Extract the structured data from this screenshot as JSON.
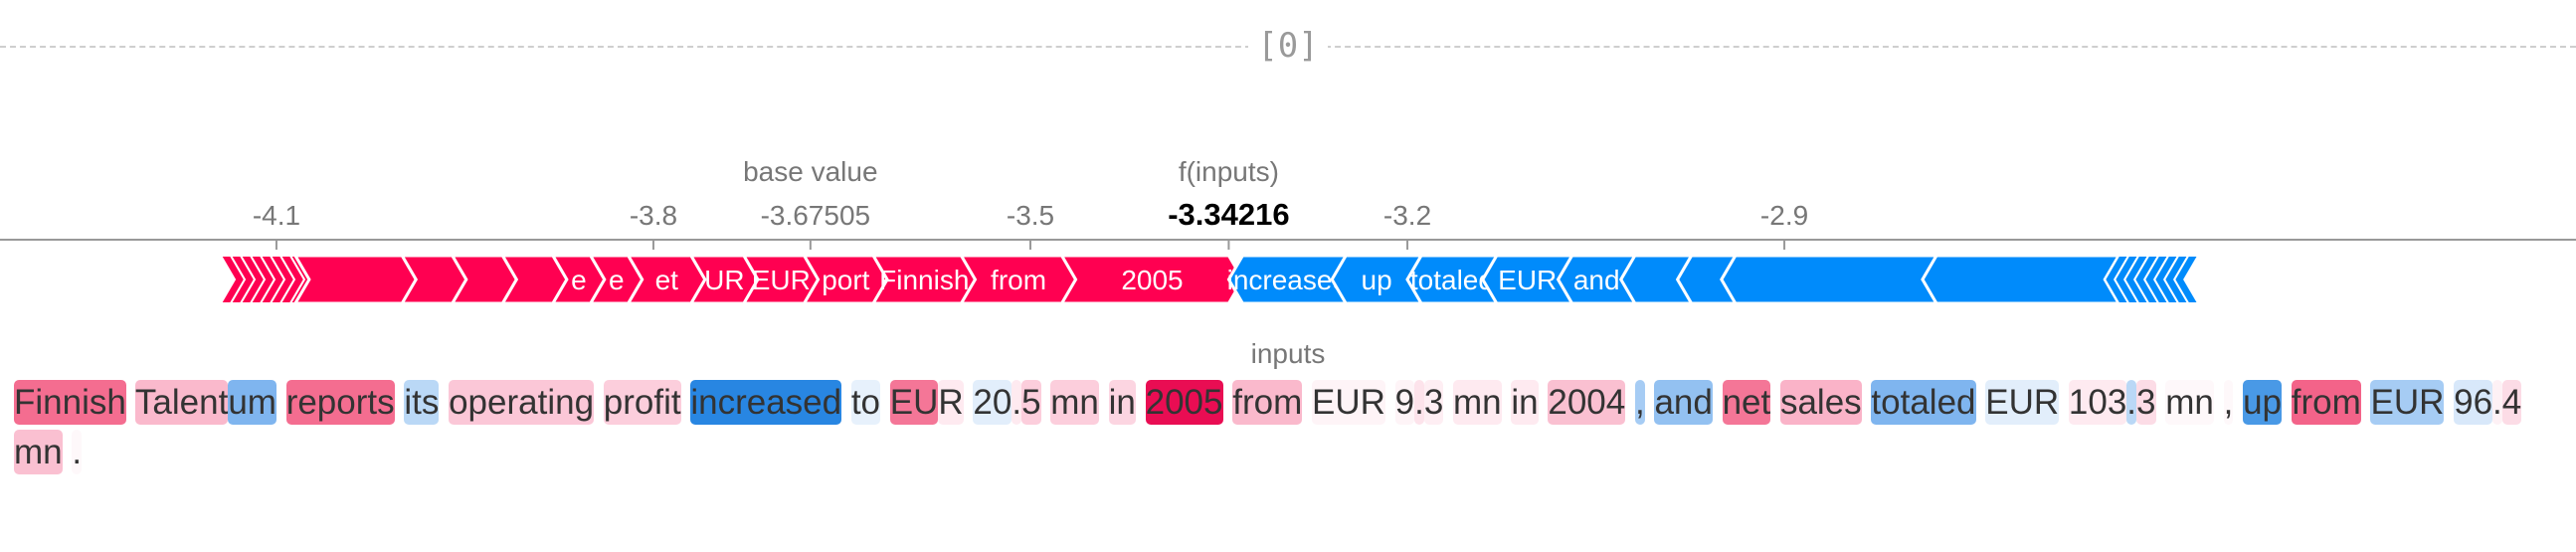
{
  "header": {
    "title": "[0]"
  },
  "chart_data": {
    "type": "force",
    "axis": {
      "xlim": [
        -4.32,
        -2.27
      ],
      "ticks": [
        -4.1,
        -3.8,
        -3.5,
        -3.2,
        -2.9
      ],
      "tick_labels": [
        "-4.1",
        "-3.8",
        "-3.5",
        "-3.2",
        "-2.9"
      ]
    },
    "base_value": {
      "label": "base value",
      "value": -3.67505,
      "value_label": "-3.67505"
    },
    "output_value": {
      "label": "f(inputs)",
      "value": -3.34216,
      "value_label": "-3.34216"
    },
    "positive_segments": [
      {
        "from": -4.085,
        "to": -4.0,
        "text": ""
      },
      {
        "from": -4.0,
        "to": -3.96,
        "text": ""
      },
      {
        "from": -3.96,
        "to": -3.92,
        "text": ""
      },
      {
        "from": -3.92,
        "to": -3.88,
        "text": ""
      },
      {
        "from": -3.88,
        "to": -3.85,
        "text": "e"
      },
      {
        "from": -3.85,
        "to": -3.82,
        "text": "e"
      },
      {
        "from": -3.82,
        "to": -3.77,
        "text": "et"
      },
      {
        "from": -3.77,
        "to": -3.728,
        "text": "UR"
      },
      {
        "from": -3.728,
        "to": -3.68,
        "text": "EUR"
      },
      {
        "from": -3.68,
        "to": -3.625,
        "text": "port"
      },
      {
        "from": -3.625,
        "to": -3.555,
        "text": "Finnish"
      },
      {
        "from": -3.555,
        "to": -3.475,
        "text": "from"
      },
      {
        "from": -3.475,
        "to": -3.34216,
        "text": "2005"
      }
    ],
    "negative_segments": [
      {
        "from": -3.34216,
        "to": -3.26,
        "text": "increased"
      },
      {
        "from": -3.26,
        "to": -3.2,
        "text": "up"
      },
      {
        "from": -3.2,
        "to": -3.14,
        "text": "totaled"
      },
      {
        "from": -3.14,
        "to": -3.08,
        "text": "EUR"
      },
      {
        "from": -3.08,
        "to": -3.03,
        "text": "and"
      },
      {
        "from": -3.03,
        "to": -2.985,
        "text": ""
      },
      {
        "from": -2.985,
        "to": -2.95,
        "text": ""
      },
      {
        "from": -2.95,
        "to": -2.79,
        "text": ""
      },
      {
        "from": -2.79,
        "to": -2.645,
        "text": ""
      }
    ],
    "colors": {
      "positive": "#ff0051",
      "negative": "#008bfb",
      "axis": "#999999"
    }
  },
  "inputs": {
    "label": "inputs",
    "tokens": [
      {
        "text": "Finnish",
        "sep": " ",
        "color": "#f03c6b",
        "alpha": 0.75
      },
      {
        "text": "Talent",
        "sep": "",
        "color": "#f5749a",
        "alpha": 0.5
      },
      {
        "text": "um",
        "sep": " ",
        "color": "#3a8ee6",
        "alpha": 0.65
      },
      {
        "text": "reports",
        "sep": " ",
        "color": "#f03c6b",
        "alpha": 0.75
      },
      {
        "text": "its",
        "sep": " ",
        "color": "#3a8ee6",
        "alpha": 0.35
      },
      {
        "text": "operating",
        "sep": " ",
        "color": "#f5749a",
        "alpha": 0.4
      },
      {
        "text": "profit",
        "sep": " ",
        "color": "#f5749a",
        "alpha": 0.35
      },
      {
        "text": "increased",
        "sep": " ",
        "color": "#1c7fe0",
        "alpha": 0.95
      },
      {
        "text": "to",
        "sep": " ",
        "color": "#3a8ee6",
        "alpha": 0.12
      },
      {
        "text": "EU",
        "sep": "",
        "color": "#f03c6b",
        "alpha": 0.7
      },
      {
        "text": "R",
        "sep": " ",
        "color": "#f5749a",
        "alpha": 0.15
      },
      {
        "text": "20",
        "sep": "",
        "color": "#3a8ee6",
        "alpha": 0.15
      },
      {
        "text": ".",
        "sep": "",
        "color": "#f5749a",
        "alpha": 0.15
      },
      {
        "text": "5",
        "sep": " ",
        "color": "#f5749a",
        "alpha": 0.35
      },
      {
        "text": "mn",
        "sep": " ",
        "color": "#f5749a",
        "alpha": 0.35
      },
      {
        "text": "in",
        "sep": " ",
        "color": "#f5749a",
        "alpha": 0.3
      },
      {
        "text": "2005",
        "sep": " ",
        "color": "#e8004a",
        "alpha": 0.95
      },
      {
        "text": "from",
        "sep": " ",
        "color": "#f5749a",
        "alpha": 0.5
      },
      {
        "text": "EUR",
        "sep": " ",
        "color": "#f5749a",
        "alpha": 0.08
      },
      {
        "text": "9",
        "sep": "",
        "color": "#f5749a",
        "alpha": 0.08
      },
      {
        "text": ".",
        "sep": "",
        "color": "#f5749a",
        "alpha": 0.2
      },
      {
        "text": "3",
        "sep": " ",
        "color": "#f5749a",
        "alpha": 0.12
      },
      {
        "text": "mn",
        "sep": " ",
        "color": "#f5749a",
        "alpha": 0.15
      },
      {
        "text": "in",
        "sep": " ",
        "color": "#f5749a",
        "alpha": 0.15
      },
      {
        "text": "2004",
        "sep": " ",
        "color": "#f5749a",
        "alpha": 0.45
      },
      {
        "text": ",",
        "sep": " ",
        "color": "#3a8ee6",
        "alpha": 0.45
      },
      {
        "text": "and",
        "sep": " ",
        "color": "#3a8ee6",
        "alpha": 0.55
      },
      {
        "text": "net",
        "sep": " ",
        "color": "#f03c6b",
        "alpha": 0.7
      },
      {
        "text": "sales",
        "sep": " ",
        "color": "#f5749a",
        "alpha": 0.55
      },
      {
        "text": "totaled",
        "sep": " ",
        "color": "#3a8ee6",
        "alpha": 0.65
      },
      {
        "text": "EUR",
        "sep": " ",
        "color": "#3a8ee6",
        "alpha": 0.15
      },
      {
        "text": "103",
        "sep": "",
        "color": "#f5749a",
        "alpha": 0.15
      },
      {
        "text": ".",
        "sep": "",
        "color": "#3a8ee6",
        "alpha": 0.35
      },
      {
        "text": "3",
        "sep": " ",
        "color": "#f5749a",
        "alpha": 0.25
      },
      {
        "text": "mn",
        "sep": " ",
        "color": "#f5749a",
        "alpha": 0.05
      },
      {
        "text": ",",
        "sep": " ",
        "color": "#f5749a",
        "alpha": 0.05
      },
      {
        "text": "up",
        "sep": " ",
        "color": "#1c7fe0",
        "alpha": 0.8
      },
      {
        "text": "from",
        "sep": " ",
        "color": "#f03c6b",
        "alpha": 0.8
      },
      {
        "text": "EUR",
        "sep": " ",
        "color": "#3a8ee6",
        "alpha": 0.45
      },
      {
        "text": "96",
        "sep": "",
        "color": "#3a8ee6",
        "alpha": 0.2
      },
      {
        "text": ".",
        "sep": "",
        "color": "#f5749a",
        "alpha": 0.1
      },
      {
        "text": "4",
        "sep": " ",
        "color": "#f5749a",
        "alpha": 0.25
      },
      {
        "text": "mn",
        "sep": " ",
        "color": "#f5749a",
        "alpha": 0.45
      },
      {
        "text": ".",
        "sep": "",
        "color": "#f5749a",
        "alpha": 0.05
      }
    ]
  }
}
